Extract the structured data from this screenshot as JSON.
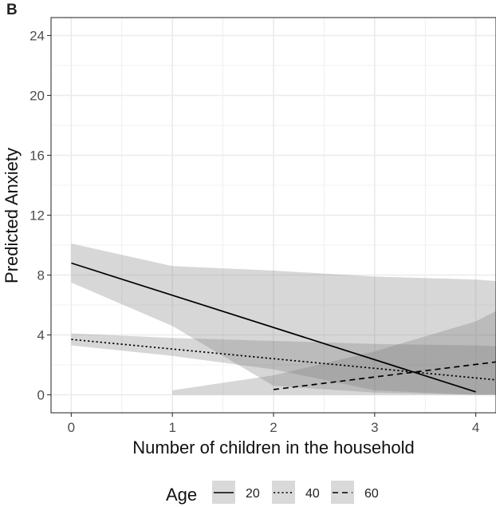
{
  "panel_label": "B",
  "chart_data": {
    "type": "line",
    "xlabel": "Number of children in the household",
    "ylabel": "Predicted Anxiety",
    "xlim": [
      -0.2,
      4.2
    ],
    "ylim": [
      -1.2,
      25.2
    ],
    "x_ticks": [
      0,
      1,
      2,
      3,
      4
    ],
    "x_tick_labels": [
      "0",
      "1",
      "2",
      "3",
      "4"
    ],
    "y_ticks": [
      0,
      4,
      8,
      12,
      16,
      20,
      24
    ],
    "y_tick_labels": [
      "0",
      "4",
      "8",
      "12",
      "16",
      "20",
      "24"
    ],
    "grid": true,
    "legend": {
      "title": "Age",
      "position": "bottom",
      "entries": [
        "20",
        "40",
        "60"
      ]
    },
    "series": [
      {
        "name": "20",
        "line_style": "solid",
        "x": [
          0,
          4
        ],
        "y": [
          8.8,
          0.2
        ],
        "band": {
          "x": [
            0,
            1,
            2,
            3,
            4,
            4.2
          ],
          "lower": [
            7.5,
            4.6,
            0.6,
            0.15,
            0.0,
            0.0
          ],
          "upper": [
            10.1,
            8.6,
            8.3,
            7.9,
            7.7,
            7.6
          ]
        }
      },
      {
        "name": "40",
        "line_style": "dotted",
        "x": [
          0,
          4.2
        ],
        "y": [
          3.7,
          1.0
        ],
        "band": {
          "x": [
            0,
            1,
            2,
            3,
            4,
            4.2
          ],
          "lower": [
            3.3,
            2.6,
            1.7,
            0.3,
            0.0,
            0.0
          ],
          "upper": [
            4.1,
            3.8,
            3.6,
            3.4,
            3.3,
            3.25
          ]
        }
      },
      {
        "name": "60",
        "line_style": "dashed",
        "x": [
          2,
          4.2
        ],
        "y": [
          0.35,
          2.2
        ],
        "band": {
          "x": [
            1,
            2,
            3,
            4,
            4.2
          ],
          "lower": [
            0.0,
            0.0,
            0.0,
            0.0,
            0.0
          ],
          "upper": [
            0.3,
            1.3,
            2.9,
            4.9,
            5.6
          ]
        }
      }
    ]
  }
}
